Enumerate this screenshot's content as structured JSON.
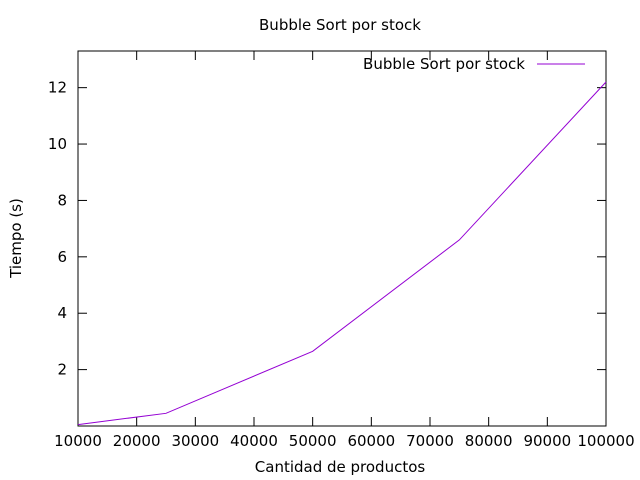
{
  "chart_data": {
    "type": "line",
    "title": "Bubble Sort por stock",
    "xlabel": "Cantidad de productos",
    "ylabel": "Tiempo (s)",
    "xlim": [
      10000,
      100000
    ],
    "ylim": [
      0,
      13.3
    ],
    "x_ticks": [
      10000,
      20000,
      30000,
      40000,
      50000,
      60000,
      70000,
      80000,
      90000,
      100000
    ],
    "y_ticks": [
      2,
      4,
      6,
      8,
      10,
      12
    ],
    "grid": false,
    "legend_position": "top-right",
    "series": [
      {
        "name": "Bubble Sort por stock",
        "color": "#9400d3",
        "x": [
          10000,
          25000,
          50000,
          75000,
          100000
        ],
        "y": [
          0.05,
          0.45,
          2.65,
          6.6,
          12.2
        ]
      }
    ]
  }
}
